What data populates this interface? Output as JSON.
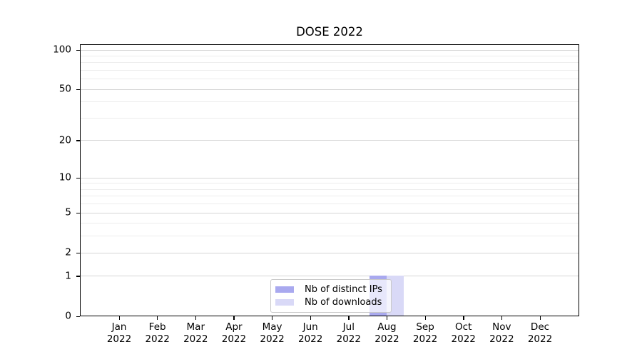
{
  "title": "DOSE 2022",
  "legend": {
    "items": [
      {
        "label": "Nb of distinct IPs",
        "color": "#a9a9ef"
      },
      {
        "label": "Nb of downloads",
        "color": "#d9d9f7"
      }
    ]
  },
  "chart_data": {
    "type": "bar",
    "title": "DOSE 2022",
    "categories": [
      "Jan 2022",
      "Feb 2022",
      "Mar 2022",
      "Apr 2022",
      "May 2022",
      "Jun 2022",
      "Jul 2022",
      "Aug 2022",
      "Sep 2022",
      "Oct 2022",
      "Nov 2022",
      "Dec 2022"
    ],
    "series": [
      {
        "name": "Nb of distinct IPs",
        "color": "#a9a9ef",
        "values": [
          0,
          0,
          0,
          0,
          0,
          0,
          0,
          1,
          0,
          0,
          0,
          0
        ]
      },
      {
        "name": "Nb of downloads",
        "color": "#d9d9f7",
        "values": [
          0,
          0,
          0,
          0,
          0,
          0,
          0,
          1,
          0,
          0,
          0,
          0
        ]
      }
    ],
    "yscale": "log1p",
    "ylim": [
      0,
      110
    ],
    "yticks": [
      0,
      1,
      2,
      5,
      10,
      20,
      50,
      100
    ],
    "yticks_minor": [
      3,
      4,
      6,
      7,
      8,
      9,
      30,
      40,
      60,
      70,
      80,
      90
    ],
    "xlabel": "",
    "ylabel": "",
    "grid": true,
    "legend_position": "lower center",
    "colors": {
      "grid_major": "#d6d6d6",
      "grid_minor": "#ededed",
      "axis": "#000000"
    }
  }
}
